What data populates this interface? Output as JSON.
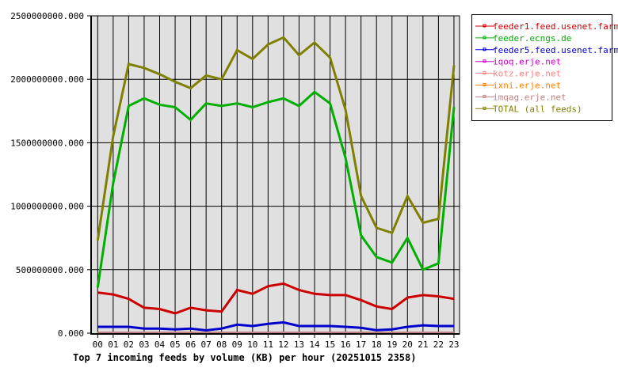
{
  "chart_data": {
    "type": "line",
    "title": "Top 7 incoming feeds by volume (KB) per hour (20251015 2358)",
    "xlabel": "",
    "ylabel": "",
    "ylim": [
      0,
      2500000000
    ],
    "yticks": [
      "0.000",
      "500000000.000",
      "1000000000.000",
      "1500000000.000",
      "2000000000.000",
      "2500000000.000"
    ],
    "ytick_values": [
      0,
      500000000,
      1000000000,
      1500000000,
      2000000000,
      2500000000
    ],
    "categories": [
      "00",
      "01",
      "02",
      "03",
      "04",
      "05",
      "06",
      "07",
      "08",
      "09",
      "10",
      "11",
      "12",
      "13",
      "14",
      "15",
      "16",
      "17",
      "18",
      "19",
      "20",
      "21",
      "22",
      "23"
    ],
    "grid": true,
    "legend_position": "right",
    "series": [
      {
        "name": "feeder1.feed.usenet.farm",
        "color": "#cc0000",
        "values": [
          320000000,
          305000000,
          270000000,
          200000000,
          190000000,
          156000000,
          200000000,
          180000000,
          170000000,
          340000000,
          310000000,
          370000000,
          390000000,
          340000000,
          310000000,
          300000000,
          300000000,
          260000000,
          210000000,
          190000000,
          280000000,
          300000000,
          290000000,
          270000000
        ]
      },
      {
        "name": "feeder.ecngs.de",
        "color": "#00b000",
        "values": [
          360000000,
          1180000000,
          1790000000,
          1850000000,
          1800000000,
          1780000000,
          1680000000,
          1810000000,
          1790000000,
          1810000000,
          1780000000,
          1820000000,
          1850000000,
          1790000000,
          1900000000,
          1810000000,
          1380000000,
          770000000,
          600000000,
          556000000,
          750000000,
          500000000,
          550000000,
          1780000000
        ]
      },
      {
        "name": "feeder5.feed.usenet.farm",
        "color": "#0000cc",
        "values": [
          50000000,
          50000000,
          50000000,
          36000000,
          36000000,
          30000000,
          36000000,
          22000000,
          36000000,
          67000000,
          56000000,
          73000000,
          85000000,
          56000000,
          56000000,
          56000000,
          50000000,
          42000000,
          23000000,
          30000000,
          50000000,
          62000000,
          56000000,
          56000000
        ]
      },
      {
        "name": "iqoq.erje.net",
        "color": "#cc00cc",
        "values": [
          2000000,
          2000000,
          2000000,
          2000000,
          2000000,
          2000000,
          2000000,
          2000000,
          2000000,
          2000000,
          2000000,
          2000000,
          2000000,
          2000000,
          2000000,
          2000000,
          2000000,
          2000000,
          2000000,
          2000000,
          2000000,
          2000000,
          2000000,
          2000000
        ]
      },
      {
        "name": "kotz.erje.net",
        "color": "#ff8080",
        "values": [
          2000000,
          2000000,
          2000000,
          2000000,
          2000000,
          2000000,
          2000000,
          2000000,
          2000000,
          2000000,
          2000000,
          2000000,
          2000000,
          2000000,
          2000000,
          2000000,
          2000000,
          2000000,
          2000000,
          2000000,
          2000000,
          2000000,
          2000000,
          2000000
        ]
      },
      {
        "name": "ixni.erje.net",
        "color": "#ff8000",
        "values": [
          2000000,
          2000000,
          2000000,
          2000000,
          2000000,
          2000000,
          2000000,
          2000000,
          2000000,
          2000000,
          2000000,
          2000000,
          2000000,
          2000000,
          2000000,
          2000000,
          2000000,
          2000000,
          2000000,
          2000000,
          2000000,
          2000000,
          2000000,
          2000000
        ]
      },
      {
        "name": "imqag.erje.net",
        "color": "#c08080",
        "values": [
          3000000,
          3000000,
          3000000,
          3000000,
          3000000,
          3000000,
          3000000,
          3000000,
          3000000,
          3000000,
          3000000,
          3000000,
          3000000,
          3000000,
          3000000,
          3000000,
          3000000,
          3000000,
          3000000,
          3000000,
          3000000,
          3000000,
          3000000,
          3000000
        ]
      },
      {
        "name": "TOTAL (all feeds)",
        "color": "#808000",
        "values": [
          730000000,
          1550000000,
          2120000000,
          2090000000,
          2040000000,
          1980000000,
          1930000000,
          2030000000,
          2000000000,
          2230000000,
          2160000000,
          2275000000,
          2330000000,
          2190000000,
          2290000000,
          2170000000,
          1760000000,
          1080000000,
          830000000,
          790000000,
          1080000000,
          870000000,
          900000000,
          2110000000
        ]
      }
    ]
  }
}
